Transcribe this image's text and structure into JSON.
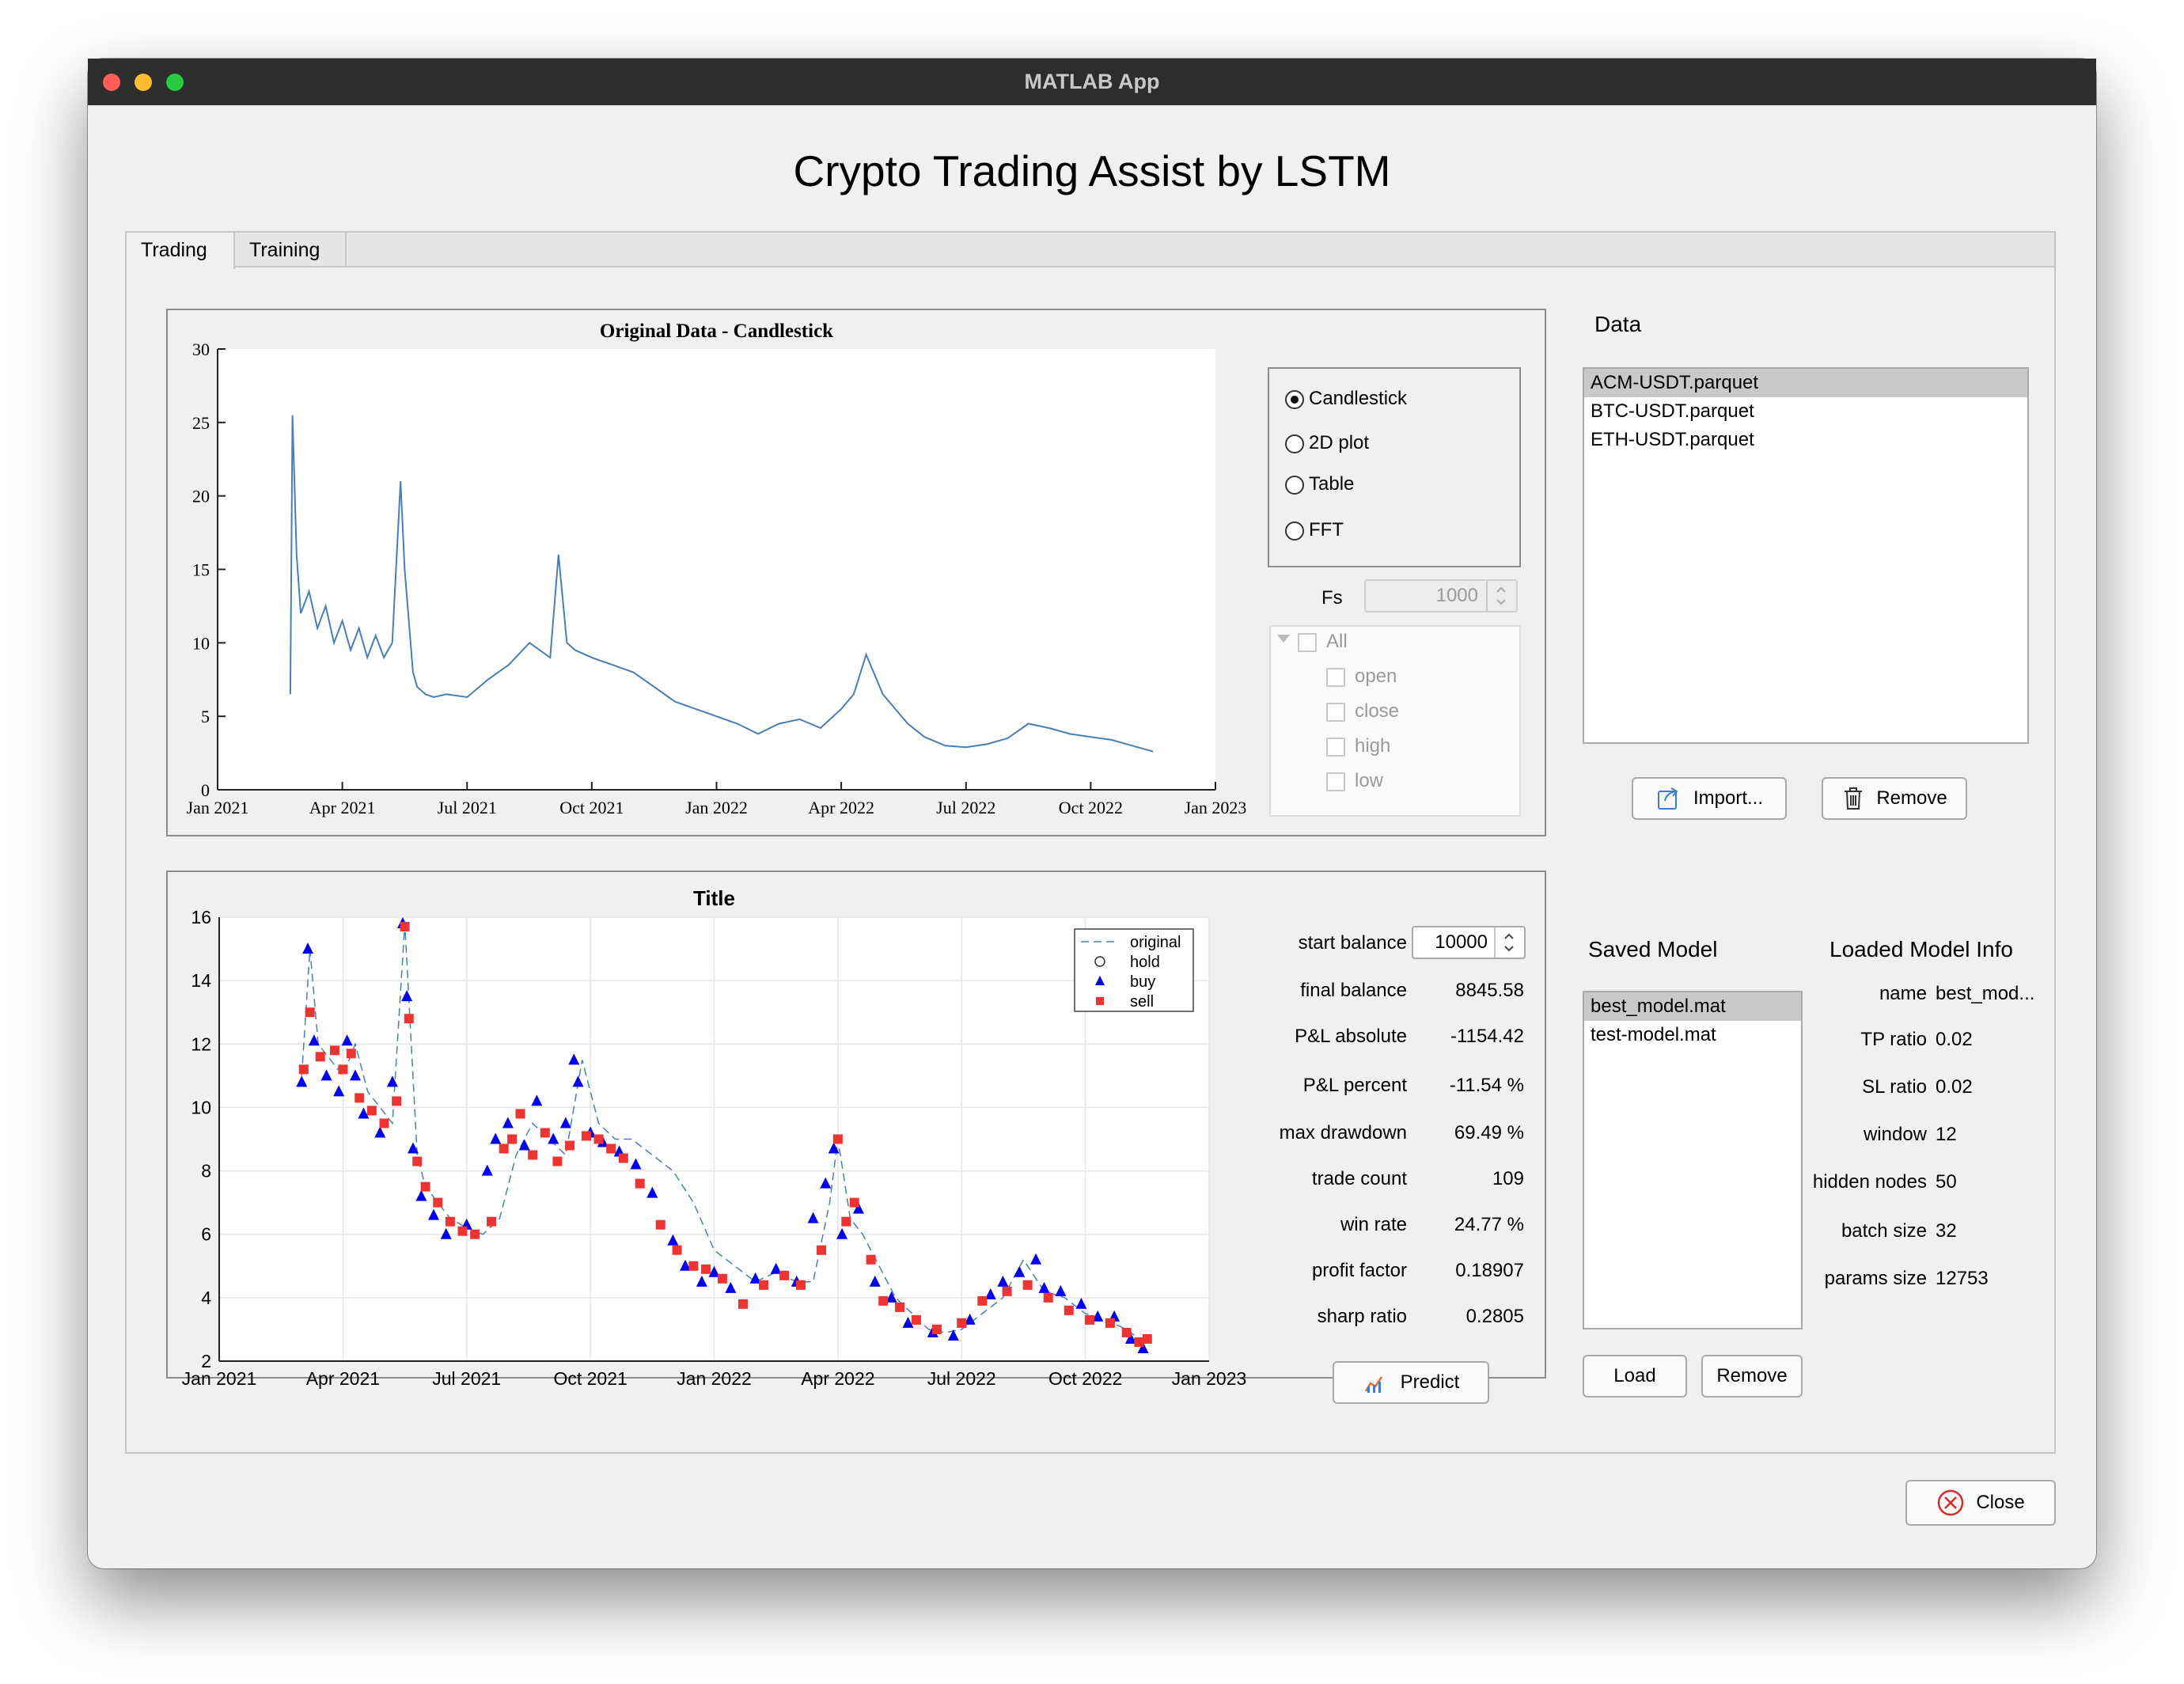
{
  "window": {
    "title": "MATLAB App",
    "app_title": "Crypto Trading Assist by LSTM"
  },
  "tabs": [
    {
      "label": "Trading"
    },
    {
      "label": "Training"
    }
  ],
  "top_plot": {
    "title": "Original Data - Candlestick",
    "view_options": [
      "Candlestick",
      "2D plot",
      "Table",
      "FFT"
    ],
    "selected_view": "Candlestick",
    "fs_label": "Fs",
    "fs_value": "1000",
    "columns_tree": [
      "All",
      "open",
      "close",
      "high",
      "low"
    ]
  },
  "data_panel": {
    "label": "Data",
    "files": [
      "ACM-USDT.parquet",
      "BTC-USDT.parquet",
      "ETH-USDT.parquet"
    ],
    "selected_file": "ACM-USDT.parquet",
    "import_label": "Import...",
    "remove_label": "Remove"
  },
  "bottom_plot": {
    "title": "Title",
    "legend": [
      "original",
      "hold",
      "buy",
      "sell"
    ]
  },
  "stats": {
    "start_balance_label": "start balance",
    "start_balance": "10000",
    "rows": [
      {
        "label": "final balance",
        "value": "8845.58"
      },
      {
        "label": "P&L absolute",
        "value": "-1154.42"
      },
      {
        "label": "P&L percent",
        "value": "-11.54 %"
      },
      {
        "label": "max drawdown",
        "value": "69.49 %"
      },
      {
        "label": "trade count",
        "value": "109"
      },
      {
        "label": "win rate",
        "value": "24.77 %"
      },
      {
        "label": "profit factor",
        "value": "0.18907"
      },
      {
        "label": "sharp ratio",
        "value": "0.2805"
      }
    ],
    "predict_label": "Predict"
  },
  "models": {
    "saved_label": "Saved Model",
    "files": [
      "best_model.mat",
      "test-model.mat"
    ],
    "selected_file": "best_model.mat",
    "load_label": "Load",
    "remove_label": "Remove",
    "info_label": "Loaded Model Info",
    "info": [
      {
        "label": "name",
        "value": "best_mod..."
      },
      {
        "label": "TP ratio",
        "value": "0.02"
      },
      {
        "label": "SL ratio",
        "value": "0.02"
      },
      {
        "label": "window",
        "value": "12"
      },
      {
        "label": "hidden nodes",
        "value": "50"
      },
      {
        "label": "batch size",
        "value": "32"
      },
      {
        "label": "params size",
        "value": "12753"
      }
    ]
  },
  "close_label": "Close",
  "colors": {
    "series_line": "#4a7fb5",
    "buy": "#0000ee",
    "sell": "#ee3333",
    "window_bg": "#f0f0f0"
  },
  "chart_data": [
    {
      "type": "line",
      "title": "Original Data - Candlestick",
      "x_ticks": [
        "Jan 2021",
        "Apr 2021",
        "Jul 2021",
        "Oct 2021",
        "Jan 2022",
        "Apr 2022",
        "Jul 2022",
        "Oct 2022",
        "Jan 2023"
      ],
      "y_ticks": [
        0,
        5,
        10,
        15,
        20,
        25,
        30
      ],
      "ylim": [
        0,
        30
      ],
      "x_unit": "month offset from Jan 2021",
      "x": [
        1.75,
        1.8,
        1.9,
        2.0,
        2.2,
        2.4,
        2.6,
        2.8,
        3.0,
        3.2,
        3.4,
        3.6,
        3.8,
        4.0,
        4.2,
        4.4,
        4.5,
        4.7,
        4.8,
        5.0,
        5.2,
        5.5,
        6.0,
        6.5,
        7.0,
        7.5,
        8.0,
        8.2,
        8.4,
        8.6,
        9.0,
        9.5,
        10.0,
        10.5,
        11.0,
        11.5,
        12.0,
        12.5,
        13.0,
        13.5,
        14.0,
        14.5,
        15.0,
        15.3,
        15.6,
        16.0,
        16.3,
        16.6,
        17.0,
        17.5,
        18.0,
        18.5,
        19.0,
        19.5,
        20.0,
        20.5,
        21.0,
        21.5,
        22.0,
        22.5
      ],
      "y": [
        6.5,
        25.5,
        16.0,
        12.0,
        13.5,
        11.0,
        12.5,
        10.0,
        11.5,
        9.5,
        11.0,
        9.0,
        10.5,
        9.0,
        10.0,
        21.0,
        15.0,
        8.0,
        7.0,
        6.5,
        6.3,
        6.5,
        6.3,
        7.5,
        8.5,
        10.0,
        9.0,
        16.0,
        10.0,
        9.5,
        9.0,
        8.5,
        8.0,
        7.0,
        6.0,
        5.5,
        5.0,
        4.5,
        3.8,
        4.5,
        4.8,
        4.2,
        5.5,
        6.5,
        9.2,
        6.5,
        5.5,
        4.5,
        3.6,
        3.0,
        2.9,
        3.1,
        3.5,
        4.5,
        4.2,
        3.8,
        3.6,
        3.4,
        3.0,
        2.6
      ]
    },
    {
      "type": "scatter",
      "title": "Title",
      "x_ticks": [
        "Jan 2021",
        "Apr 2021",
        "Jul 2021",
        "Oct 2021",
        "Jan 2022",
        "Apr 2022",
        "Jul 2022",
        "Oct 2022",
        "Jan 2023"
      ],
      "y_ticks": [
        2,
        4,
        6,
        8,
        10,
        12,
        14,
        16
      ],
      "ylim": [
        2,
        16
      ],
      "x_unit": "month offset from Jan 2021",
      "series": [
        {
          "name": "original",
          "x": [
            2.0,
            2.2,
            2.4,
            2.7,
            3.0,
            3.3,
            3.6,
            3.9,
            4.2,
            4.5,
            4.8,
            5.0,
            5.3,
            5.6,
            6.0,
            6.4,
            6.8,
            7.2,
            7.6,
            8.0,
            8.4,
            8.8,
            9.2,
            9.6,
            10.0,
            10.5,
            11.0,
            11.5,
            12.0,
            12.5,
            13.0,
            13.5,
            14.0,
            14.4,
            14.8,
            15.0,
            15.3,
            15.6,
            16.0,
            16.4,
            16.8,
            17.2,
            17.6,
            18.0,
            18.5,
            19.0,
            19.5,
            20.0,
            20.5,
            21.0,
            21.5,
            22.0,
            22.5
          ],
          "y": [
            11.0,
            15.0,
            12.0,
            11.5,
            11.0,
            12.0,
            10.5,
            10.0,
            9.5,
            15.8,
            8.5,
            7.5,
            7.0,
            6.5,
            6.2,
            6.0,
            6.5,
            8.5,
            9.5,
            9.0,
            8.5,
            11.5,
            9.5,
            9.0,
            9.0,
            8.5,
            8.0,
            7.0,
            5.5,
            5.0,
            4.5,
            4.8,
            4.5,
            4.5,
            7.0,
            9.0,
            6.5,
            6.0,
            5.0,
            4.0,
            3.5,
            3.0,
            2.9,
            3.0,
            3.5,
            4.0,
            5.2,
            4.2,
            4.0,
            3.5,
            3.3,
            3.0,
            2.5
          ]
        },
        {
          "name": "buy",
          "x": [
            2.0,
            2.15,
            2.3,
            2.6,
            2.9,
            3.1,
            3.3,
            3.5,
            3.9,
            4.2,
            4.45,
            4.55,
            4.7,
            4.9,
            5.2,
            5.5,
            6.0,
            6.5,
            6.7,
            7.0,
            7.4,
            7.7,
            8.1,
            8.4,
            8.6,
            8.7,
            9.0,
            9.3,
            9.7,
            10.1,
            10.5,
            11.0,
            11.3,
            11.7,
            12.0,
            12.4,
            13.0,
            13.5,
            14.0,
            14.4,
            14.7,
            14.9,
            15.1,
            15.5,
            15.9,
            16.3,
            16.7,
            17.3,
            17.8,
            18.2,
            18.7,
            19.0,
            19.4,
            19.8,
            20.0,
            20.4,
            20.9,
            21.3,
            21.7,
            22.1,
            22.4
          ],
          "y": [
            10.8,
            15.0,
            12.1,
            11.0,
            10.5,
            12.1,
            11.0,
            9.8,
            9.2,
            10.8,
            15.8,
            13.5,
            8.7,
            7.2,
            6.6,
            6.0,
            6.3,
            8.0,
            9.0,
            9.5,
            8.8,
            10.2,
            9.0,
            9.5,
            11.5,
            10.8,
            9.2,
            8.9,
            8.6,
            8.2,
            7.3,
            5.8,
            5.0,
            4.5,
            4.8,
            4.3,
            4.6,
            4.9,
            4.5,
            6.5,
            7.6,
            8.7,
            6.0,
            6.8,
            4.5,
            4.0,
            3.2,
            2.9,
            2.8,
            3.3,
            4.1,
            4.5,
            4.8,
            5.2,
            4.3,
            4.2,
            3.8,
            3.4,
            3.4,
            2.7,
            2.4
          ]
        },
        {
          "name": "sell",
          "x": [
            2.05,
            2.2,
            2.45,
            2.8,
            3.0,
            3.2,
            3.4,
            3.7,
            4.0,
            4.3,
            4.5,
            4.6,
            4.8,
            5.0,
            5.3,
            5.6,
            5.9,
            6.2,
            6.6,
            6.9,
            7.1,
            7.3,
            7.6,
            7.9,
            8.2,
            8.5,
            8.9,
            9.2,
            9.5,
            9.8,
            10.2,
            10.7,
            11.1,
            11.5,
            11.8,
            12.2,
            12.7,
            13.2,
            13.7,
            14.1,
            14.6,
            15.0,
            15.2,
            15.4,
            15.8,
            16.1,
            16.5,
            16.9,
            17.4,
            18.0,
            18.5,
            19.1,
            19.6,
            20.1,
            20.6,
            21.1,
            21.6,
            22.0,
            22.3,
            22.5
          ],
          "y": [
            11.2,
            13.0,
            11.6,
            11.8,
            11.2,
            11.7,
            10.3,
            9.9,
            9.5,
            10.2,
            15.7,
            12.8,
            8.3,
            7.5,
            7.0,
            6.4,
            6.1,
            6.0,
            6.4,
            8.7,
            9.0,
            9.8,
            8.5,
            9.2,
            8.3,
            8.8,
            9.1,
            9.0,
            8.7,
            8.4,
            7.6,
            6.3,
            5.5,
            5.0,
            4.9,
            4.6,
            3.8,
            4.4,
            4.7,
            4.4,
            5.5,
            9.0,
            6.4,
            7.0,
            5.2,
            3.9,
            3.7,
            3.3,
            3.0,
            3.2,
            3.9,
            4.2,
            4.4,
            4.0,
            3.6,
            3.3,
            3.2,
            2.9,
            2.6,
            2.7
          ]
        }
      ]
    }
  ]
}
